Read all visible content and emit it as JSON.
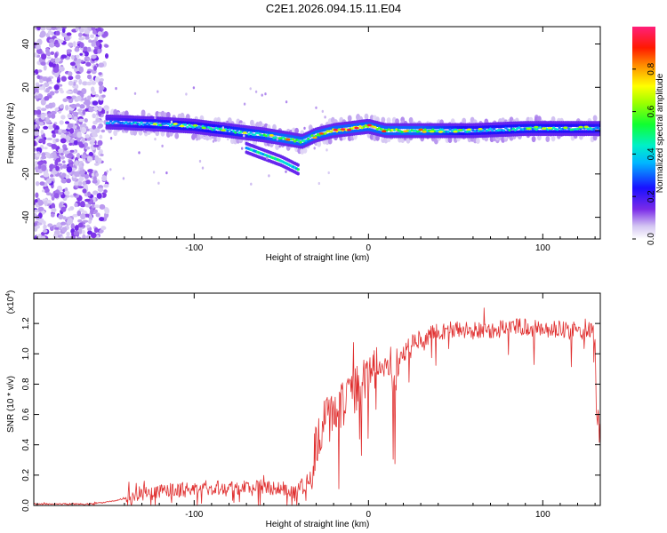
{
  "title": "C2E1.2026.094.15.11.E04",
  "chart_data": [
    {
      "type": "heatmap",
      "xlabel": "Height of straight line (km)",
      "ylabel": "Frequency (Hz)",
      "xlim": [
        -192,
        133
      ],
      "ylim": [
        -50,
        48
      ],
      "xticks": [
        -100,
        0,
        100
      ],
      "xticklabels": [
        "-100",
        "0",
        "100"
      ],
      "yticks": [
        -40,
        -20,
        0,
        20,
        40
      ],
      "yticklabels": [
        "-40",
        "-20",
        "0",
        "20",
        "40"
      ],
      "colorbar": {
        "label": "Normalized spectral amplitude",
        "range": [
          0,
          1
        ],
        "ticks": [
          0.0,
          0.2,
          0.4,
          0.6,
          0.8
        ],
        "ticklabels": [
          "0.0",
          "0.2",
          "0.4",
          "0.6",
          "0.8"
        ]
      },
      "ridge": {
        "x": [
          -180,
          -150,
          -120,
          -100,
          -80,
          -60,
          -45,
          -38,
          -30,
          -20,
          -10,
          0,
          10,
          30,
          60,
          90,
          133
        ],
        "frequency": [
          3,
          4,
          3,
          2,
          0,
          -2,
          -4,
          -5,
          -2,
          0,
          1,
          2,
          0,
          0,
          0,
          1,
          1
        ],
        "amplitude": [
          0.3,
          0.35,
          0.5,
          0.45,
          0.5,
          0.55,
          0.7,
          0.6,
          0.6,
          0.85,
          0.8,
          0.85,
          0.75,
          0.6,
          0.45,
          0.5,
          0.45
        ]
      },
      "branch": {
        "x": [
          -70,
          -60,
          -50,
          -45,
          -40
        ],
        "frequency": [
          -8,
          -11,
          -14,
          -16,
          -18
        ]
      },
      "noise_region": {
        "x": [
          -192,
          -150
        ],
        "frequency": [
          -50,
          48
        ]
      }
    },
    {
      "type": "line",
      "xlabel": "Height of straight line (km)",
      "ylabel": "SNR (10 * v/v)",
      "scale_label": "(x10",
      "scale_exp": "4",
      "xlim": [
        -192,
        133
      ],
      "ylim": [
        0,
        1.4
      ],
      "xticks": [
        -100,
        0,
        100
      ],
      "xticklabels": [
        "-100",
        "0",
        "100"
      ],
      "yticks": [
        0.0,
        0.2,
        0.4,
        0.6,
        0.8,
        1.0,
        1.2
      ],
      "yticklabels": [
        "0.0",
        "0.2",
        "0.4",
        "0.6",
        "0.8",
        "1.0",
        "1.2"
      ],
      "color": "#e03030",
      "series": [
        {
          "name": "SNR",
          "x": [
            -192,
            -160,
            -145,
            -130,
            -110,
            -90,
            -70,
            -55,
            -45,
            -38,
            -33,
            -30,
            -27,
            -24,
            -20,
            -15,
            -10,
            -5,
            0,
            5,
            10,
            15,
            20,
            25,
            30,
            35,
            40,
            50,
            60,
            70,
            80,
            90,
            100,
            110,
            120,
            128,
            130,
            131,
            133
          ],
          "y": [
            0.01,
            0.01,
            0.03,
            0.08,
            0.1,
            0.12,
            0.12,
            0.12,
            0.1,
            0.12,
            0.2,
            0.4,
            0.5,
            0.6,
            0.62,
            0.66,
            0.72,
            0.8,
            0.85,
            0.9,
            0.95,
            0.85,
            1.0,
            1.07,
            1.1,
            1.12,
            1.15,
            1.16,
            1.15,
            1.16,
            1.17,
            1.18,
            1.15,
            1.16,
            1.15,
            1.15,
            1.1,
            0.6,
            0.4
          ]
        }
      ]
    }
  ]
}
